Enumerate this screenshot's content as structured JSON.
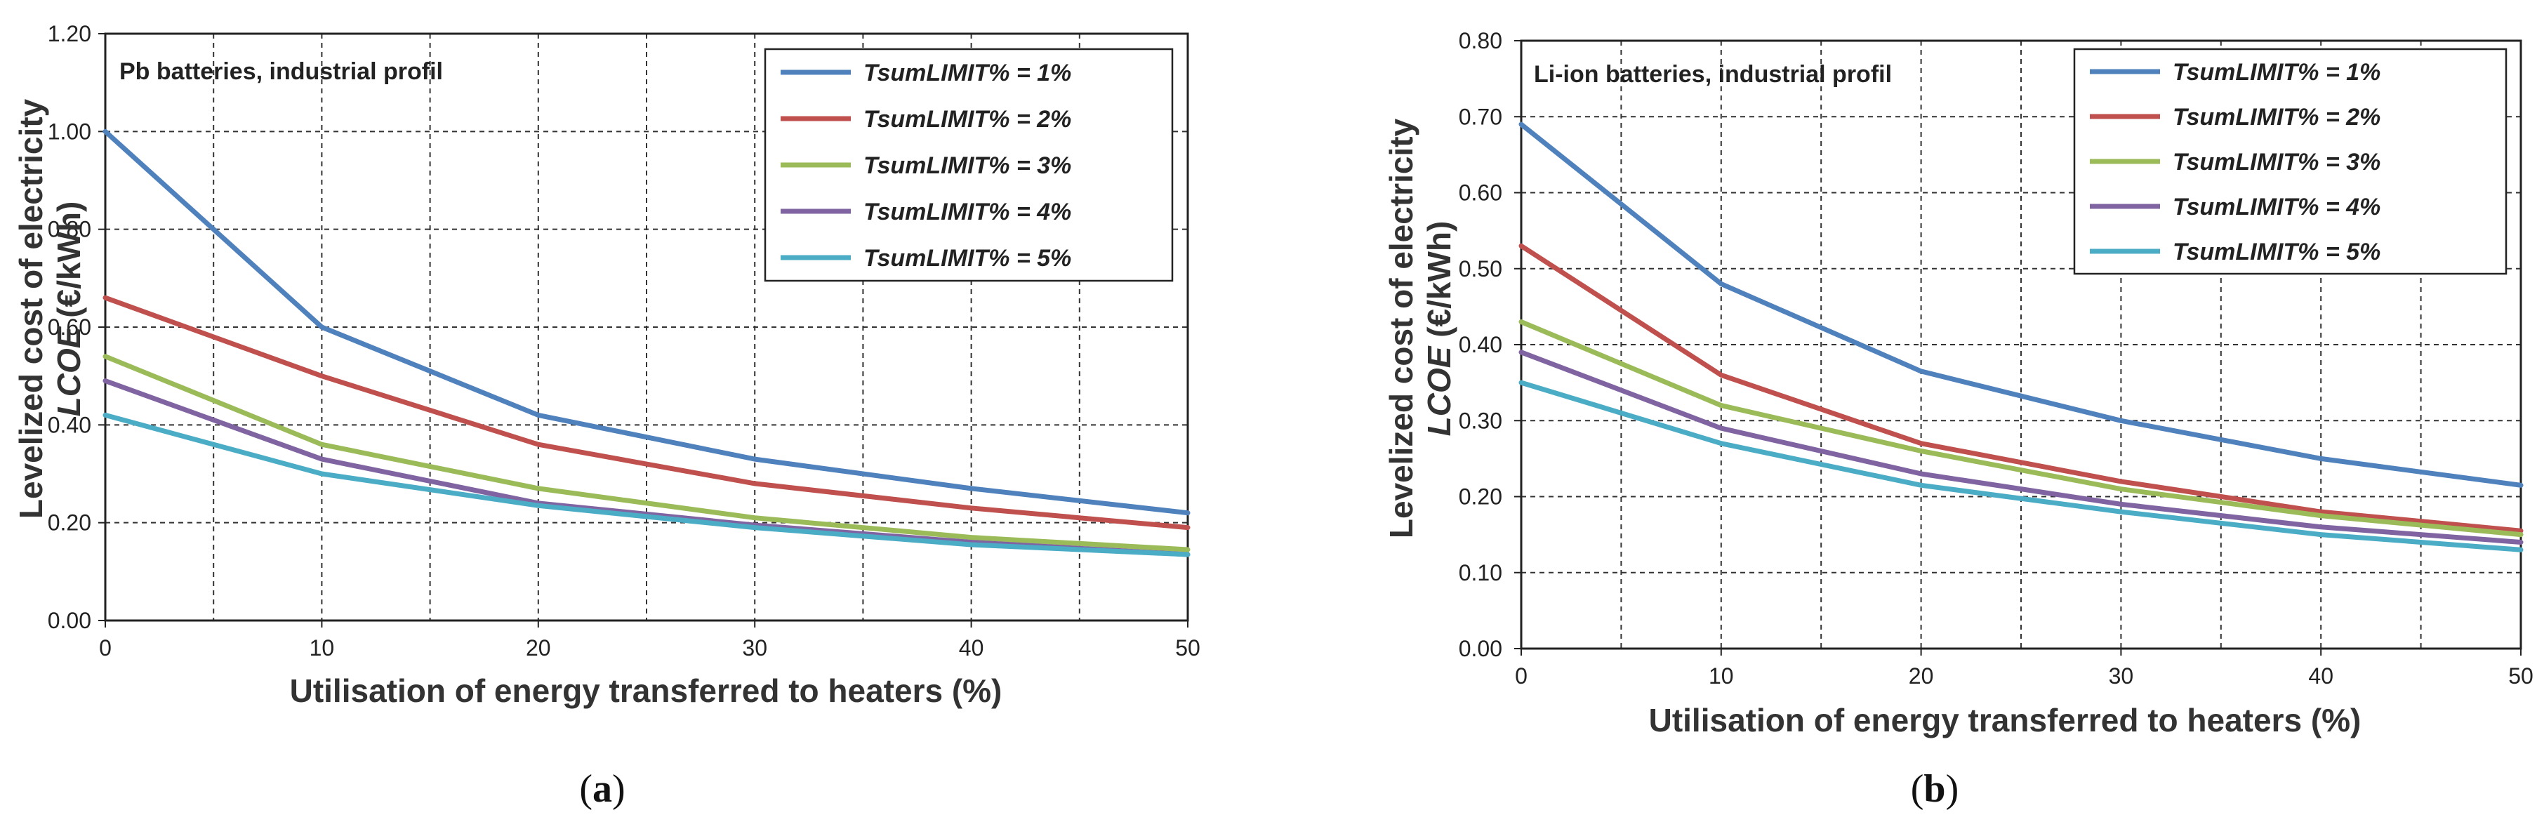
{
  "chart_data": [
    {
      "type": "line",
      "panel_label": "(a)",
      "annotation": "Pb batteries, industrial profil",
      "xlabel": "Utilisation of energy transferred  to heaters (%)",
      "ylabel_line1": "Levelized cost of electricity",
      "ylabel_var": "LCOE",
      "ylabel_unit": " (€/kWh)",
      "xlim": [
        0,
        50
      ],
      "ylim": [
        0,
        1.2
      ],
      "x_ticks": [
        0,
        10,
        20,
        30,
        40,
        50
      ],
      "y_ticks": [
        "0.00",
        "0.20",
        "0.40",
        "0.60",
        "0.80",
        "1.00",
        "1.20"
      ],
      "legend_position": "top-right",
      "x": [
        0,
        10,
        20,
        30,
        40,
        50
      ],
      "series": [
        {
          "name": "TsumLIMIT% = 1%",
          "color": "#4F81BD",
          "values": [
            1.0,
            0.6,
            0.42,
            0.33,
            0.27,
            0.22
          ]
        },
        {
          "name": "TsumLIMIT% = 2%",
          "color": "#C0504D",
          "values": [
            0.66,
            0.5,
            0.36,
            0.28,
            0.23,
            0.19
          ]
        },
        {
          "name": "TsumLIMIT% = 3%",
          "color": "#9BBB59",
          "values": [
            0.54,
            0.36,
            0.27,
            0.21,
            0.17,
            0.145
          ]
        },
        {
          "name": "TsumLIMIT% = 4%",
          "color": "#8064A2",
          "values": [
            0.49,
            0.33,
            0.24,
            0.195,
            0.16,
            0.135
          ]
        },
        {
          "name": "TsumLIMIT% = 5%",
          "color": "#4BACC6",
          "values": [
            0.42,
            0.3,
            0.235,
            0.19,
            0.155,
            0.135
          ]
        }
      ]
    },
    {
      "type": "line",
      "panel_label": "(b)",
      "annotation": "Li-ion batteries, industrial profil",
      "xlabel": "Utilisation of energy transferred  to heaters (%)",
      "ylabel_line1": "Levelized cost of electricity",
      "ylabel_var": "LCOE",
      "ylabel_unit": " (€/kWh)",
      "xlim": [
        0,
        50
      ],
      "ylim": [
        0,
        0.8
      ],
      "x_ticks": [
        0,
        10,
        20,
        30,
        40,
        50
      ],
      "y_ticks": [
        "0.00",
        "0.10",
        "0.20",
        "0.30",
        "0.40",
        "0.50",
        "0.60",
        "0.70",
        "0.80"
      ],
      "legend_position": "top-right",
      "x": [
        0,
        10,
        20,
        30,
        40,
        50
      ],
      "series": [
        {
          "name": "TsumLIMIT% = 1%",
          "color": "#4F81BD",
          "values": [
            0.69,
            0.48,
            0.365,
            0.3,
            0.25,
            0.215
          ]
        },
        {
          "name": "TsumLIMIT% = 2%",
          "color": "#C0504D",
          "values": [
            0.53,
            0.36,
            0.27,
            0.22,
            0.18,
            0.155
          ]
        },
        {
          "name": "TsumLIMIT% = 3%",
          "color": "#9BBB59",
          "values": [
            0.43,
            0.32,
            0.26,
            0.21,
            0.175,
            0.15
          ]
        },
        {
          "name": "TsumLIMIT% = 4%",
          "color": "#8064A2",
          "values": [
            0.39,
            0.29,
            0.23,
            0.19,
            0.16,
            0.14
          ]
        },
        {
          "name": "TsumLIMIT% = 5%",
          "color": "#4BACC6",
          "values": [
            0.35,
            0.27,
            0.215,
            0.18,
            0.15,
            0.13
          ]
        }
      ]
    }
  ]
}
